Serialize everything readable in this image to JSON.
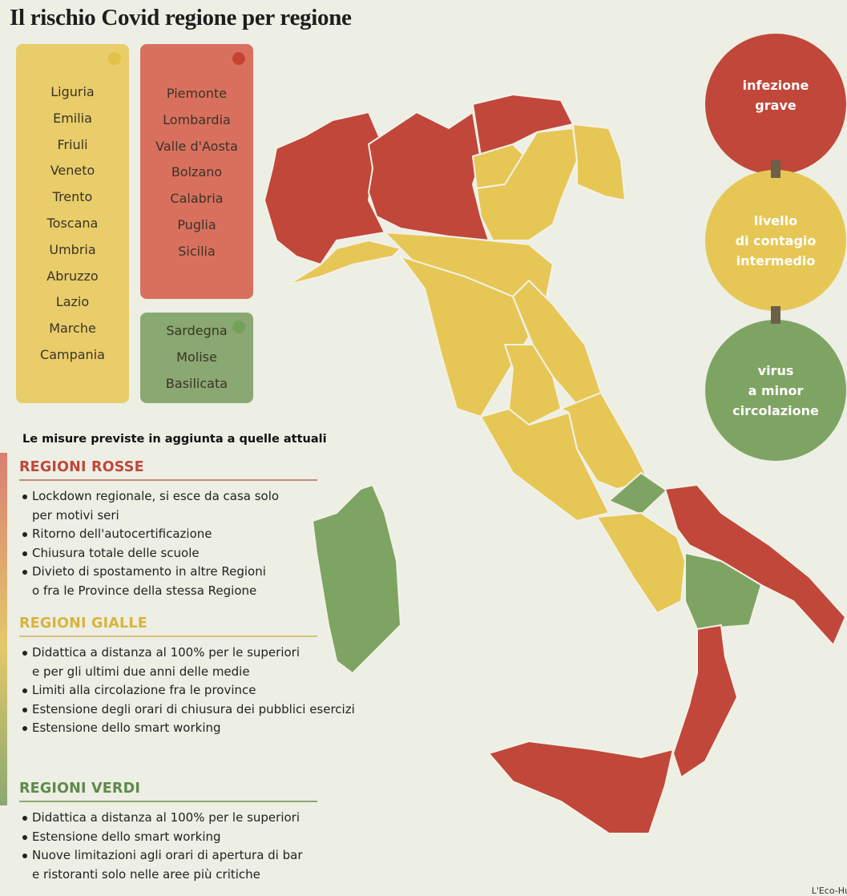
{
  "title": "Il rischio Covid regione per regione",
  "lists": [
    {
      "items": [
        "Liguria",
        "Emilia",
        "Friuli",
        "Veneto",
        "Trento",
        "Toscana",
        "Umbria",
        "Abruzzo",
        "Lazio",
        "Marche",
        "Campania"
      ]
    },
    {
      "items": [
        "Piemonte",
        "Lombardia",
        "Valle d'Aosta",
        "Bolzano",
        "Calabria",
        "Puglia",
        "Sicilia"
      ]
    },
    {
      "items": [
        "Sardegna",
        "Molise",
        "Basilicata"
      ]
    }
  ],
  "legend": [
    {
      "lines": [
        "infezione",
        "grave"
      ]
    },
    {
      "lines": [
        "livello",
        "di contagio",
        "intermedio"
      ]
    },
    {
      "lines": [
        "virus",
        "a minor",
        "circolazione"
      ]
    }
  ],
  "measures": {
    "heading": "Le misure previste in aggiunta a quelle attuali",
    "sections": [
      {
        "title": "REGIONI ROSSE",
        "items": [
          [
            "Lockdown regionale, si esce da casa solo",
            "per motivi seri"
          ],
          [
            "Ritorno dell'autocertificazione"
          ],
          [
            "Chiusura totale delle scuole"
          ],
          [
            "Divieto di spostamento in altre Regioni",
            "o fra le Province della stessa Regione"
          ]
        ]
      },
      {
        "title": "REGIONI GIALLE",
        "items": [
          [
            "Didattica a distanza al 100% per le superiori",
            "e per gli ultimi due anni delle medie"
          ],
          [
            "Limiti alla circolazione fra le province"
          ],
          [
            "Estensione degli orari di chiusura dei pubblici esercizi"
          ],
          [
            "Estensione dello smart working"
          ]
        ]
      },
      {
        "title": "REGIONI VERDI",
        "items": [
          [
            "Didattica  a distanza al 100% per le superiori"
          ],
          [
            "Estensione dello smart working"
          ],
          [
            "Nuove limitazioni agli orari di apertura di bar",
            "e ristoranti solo nelle aree più critiche"
          ]
        ]
      }
    ]
  },
  "credit": "L'Eco-Hu"
}
